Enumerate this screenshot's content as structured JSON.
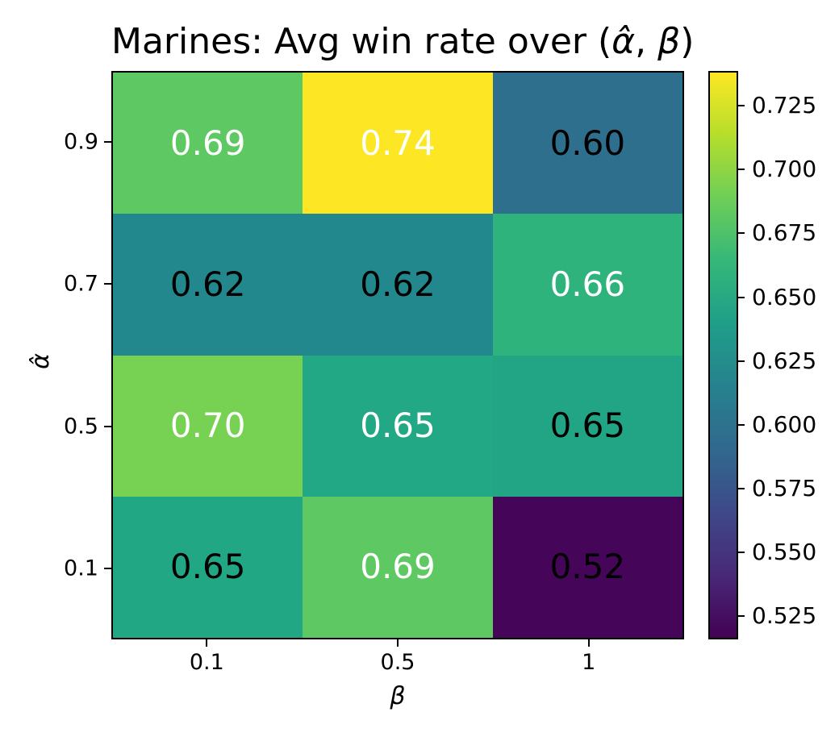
{
  "figure": {
    "background": "#ffffff",
    "axis_color": "#000000"
  },
  "chart_data": {
    "type": "heatmap",
    "title": "Marines: Avg win rate over (α̂, β)",
    "title_parts": {
      "prefix": "Marines: Avg win rate over (",
      "alpha_hat": "α̂",
      "separator": ", ",
      "beta": "β",
      "suffix": ")"
    },
    "xlabel": "β",
    "ylabel": "α̂",
    "x_ticklabels": [
      "0.1",
      "0.5",
      "1"
    ],
    "y_ticklabels": [
      "0.9",
      "0.7",
      "0.5",
      "0.1"
    ],
    "values": [
      [
        0.69,
        0.74,
        0.6
      ],
      [
        0.62,
        0.62,
        0.66
      ],
      [
        0.7,
        0.65,
        0.65
      ],
      [
        0.65,
        0.69,
        0.52
      ]
    ],
    "cells": [
      [
        {
          "label": "0.69",
          "bg": "#5ec962",
          "fg": "#ffffff"
        },
        {
          "label": "0.74",
          "bg": "#fde725",
          "fg": "#ffffff"
        },
        {
          "label": "0.60",
          "bg": "#2e6f8e",
          "fg": "#000000"
        }
      ],
      [
        {
          "label": "0.62",
          "bg": "#23888e",
          "fg": "#000000"
        },
        {
          "label": "0.62",
          "bg": "#23888e",
          "fg": "#000000"
        },
        {
          "label": "0.66",
          "bg": "#2eb37c",
          "fg": "#ffffff"
        }
      ],
      [
        {
          "label": "0.70",
          "bg": "#77d153",
          "fg": "#ffffff"
        },
        {
          "label": "0.65",
          "bg": "#22a884",
          "fg": "#ffffff"
        },
        {
          "label": "0.65",
          "bg": "#21a585",
          "fg": "#000000"
        }
      ],
      [
        {
          "label": "0.65",
          "bg": "#22a785",
          "fg": "#000000"
        },
        {
          "label": "0.69",
          "bg": "#5ec962",
          "fg": "#ffffff"
        },
        {
          "label": "0.52",
          "bg": "#450559",
          "fg": "#000000"
        }
      ]
    ],
    "colormap": "viridis",
    "grid": false,
    "legend_position": "right-colorbar",
    "colorbar": {
      "vmin": 0.516,
      "vmax": 0.7386,
      "ticks": [
        {
          "value": 0.725,
          "label": "0.725"
        },
        {
          "value": 0.7,
          "label": "0.700"
        },
        {
          "value": 0.675,
          "label": "0.675"
        },
        {
          "value": 0.65,
          "label": "0.650"
        },
        {
          "value": 0.625,
          "label": "0.625"
        },
        {
          "value": 0.6,
          "label": "0.600"
        },
        {
          "value": 0.575,
          "label": "0.575"
        },
        {
          "value": 0.55,
          "label": "0.550"
        },
        {
          "value": 0.525,
          "label": "0.525"
        }
      ],
      "gradient_stops_top_to_bottom": [
        "#fde725",
        "#b5de2b",
        "#6ece58",
        "#35b779",
        "#1f9e89",
        "#26828e",
        "#31688e",
        "#3e4989",
        "#482878",
        "#440154"
      ]
    }
  }
}
